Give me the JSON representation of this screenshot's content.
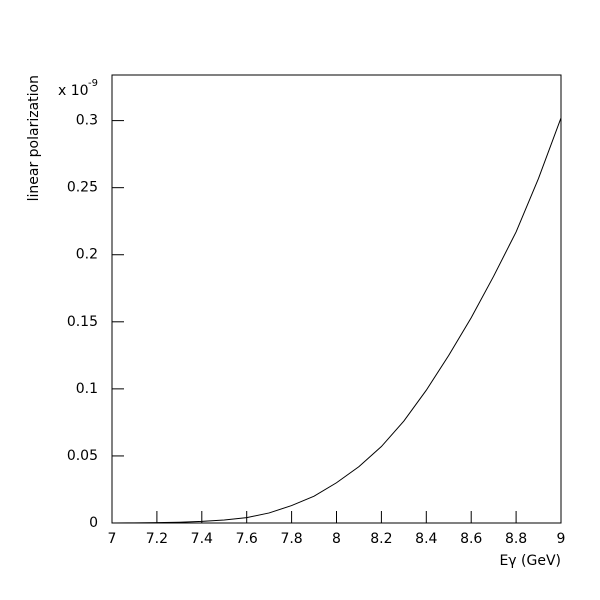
{
  "chart_data": {
    "type": "line",
    "x_label": "Eγ (GeV)",
    "y_label": "linear polarization",
    "y_scale_prefix": "x 10",
    "y_scale_exponent": "-9",
    "x": [
      7.0,
      7.1,
      7.2,
      7.3,
      7.4,
      7.5,
      7.6,
      7.7,
      7.8,
      7.9,
      8.0,
      8.1,
      8.2,
      8.3,
      8.4,
      8.5,
      8.6,
      8.7,
      8.8,
      8.9,
      9.0
    ],
    "series": [
      {
        "color": "#000000",
        "values": [
          0,
          0.0001,
          0.0003,
          0.0006,
          0.0012,
          0.0022,
          0.004,
          0.0075,
          0.013,
          0.02,
          0.03,
          0.042,
          0.057,
          0.076,
          0.099,
          0.125,
          0.153,
          0.184,
          0.217,
          0.257,
          0.302
        ]
      }
    ],
    "xlim": [
      7,
      9
    ],
    "ylim": [
      0,
      0.334
    ],
    "xticks": [
      7,
      7.2,
      7.4,
      7.6,
      7.8,
      8,
      8.2,
      8.4,
      8.6,
      8.8,
      9
    ],
    "yticks": [
      0,
      0.05,
      0.1,
      0.15,
      0.2,
      0.25,
      0.3
    ]
  }
}
